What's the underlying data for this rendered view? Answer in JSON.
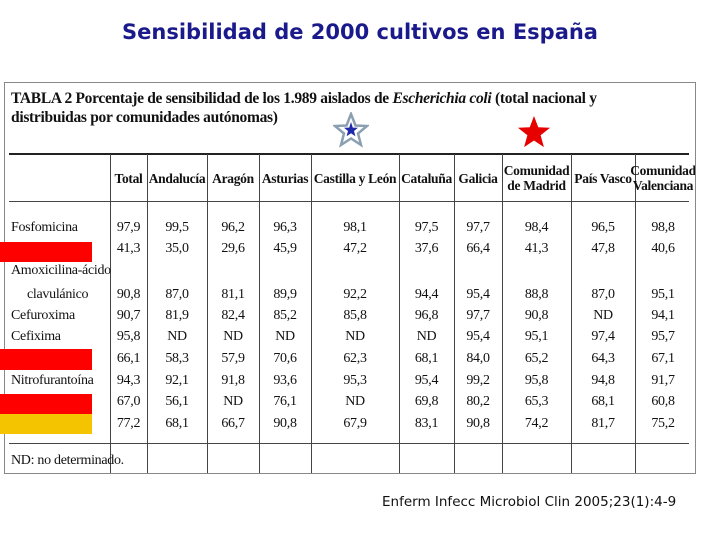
{
  "slide_title": "Sensibilidad de 2000 cultivos en España",
  "caption": {
    "prefix": "TABLA 2",
    "text_before": "  Porcentaje de sensibilidad de los 1.989 aislados de ",
    "organism": "Escherichia coli",
    "text_after": " (total nacional y distribuidas por comunidades autónomas)"
  },
  "columns": [
    "Total",
    "Andalucía",
    "Aragón",
    "Asturias",
    "Castilla y León",
    "Cataluña",
    "Galicia",
    "Comunidad de Madrid",
    "País Vasco",
    "Comunidad Valenciana"
  ],
  "rows": [
    {
      "label": "Fosfomicina",
      "values": [
        "97,9",
        "99,5",
        "96,2",
        "96,3",
        "98,1",
        "97,5",
        "97,7",
        "98,4",
        "96,5",
        "98,8"
      ]
    },
    {
      "label": "",
      "values": [
        "41,3",
        "35,0",
        "29,6",
        "45,9",
        "47,2",
        "37,6",
        "66,4",
        "41,3",
        "47,8",
        "40,6"
      ]
    },
    {
      "label": "Amoxicilina-ácido",
      "label2": "clavulánico",
      "values": [
        "90,8",
        "87,0",
        "81,1",
        "89,9",
        "92,2",
        "94,4",
        "95,4",
        "88,8",
        "87,0",
        "95,1"
      ]
    },
    {
      "label": "Cefuroxima",
      "values": [
        "90,7",
        "81,9",
        "82,4",
        "85,2",
        "85,8",
        "96,8",
        "97,7",
        "90,8",
        "ND",
        "94,1"
      ]
    },
    {
      "label": "Cefixima",
      "values": [
        "95,8",
        "ND",
        "ND",
        "ND",
        "ND",
        "ND",
        "95,4",
        "95,1",
        "97,4",
        "95,7"
      ]
    },
    {
      "label": "",
      "values": [
        "66,1",
        "58,3",
        "57,9",
        "70,6",
        "62,3",
        "68,1",
        "84,0",
        "65,2",
        "64,3",
        "67,1"
      ]
    },
    {
      "label": "Nitrofurantoína",
      "values": [
        "94,3",
        "92,1",
        "91,8",
        "93,6",
        "95,3",
        "95,4",
        "99,2",
        "95,8",
        "94,8",
        "91,7"
      ]
    },
    {
      "label": "",
      "values": [
        "67,0",
        "56,1",
        "ND",
        "76,1",
        "ND",
        "69,8",
        "80,2",
        "65,3",
        "68,1",
        "60,8"
      ]
    },
    {
      "label": "",
      "values": [
        "77,2",
        "68,1",
        "66,7",
        "90,8",
        "67,9",
        "83,1",
        "90,8",
        "74,2",
        "81,7",
        "75,2"
      ]
    }
  ],
  "footnote": "ND: no determinado.",
  "reference": "Enferm Infecc Microbiol Clin 2005;23(1):4-9",
  "colors": {
    "title": "#1a1a8c",
    "marker_red": "#ff0000",
    "marker_yellow": "#f5c400",
    "star_blue_fill": "#1f2aa8",
    "star_blue_outline": "#8aa0b0",
    "star_red": "#e60000"
  },
  "icons": {
    "star_castilla": "star-icon",
    "star_madrid": "star-icon"
  }
}
